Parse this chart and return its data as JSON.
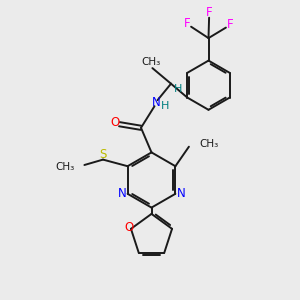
{
  "background_color": "#EBEBEB",
  "bond_color": "#1a1a1a",
  "N_color": "#0000FF",
  "O_color": "#FF0000",
  "S_color": "#BBBB00",
  "F_color": "#FF00FF",
  "NH_color": "#008080",
  "figsize": [
    3.0,
    3.0
  ],
  "dpi": 100,
  "xlim": [
    0,
    10
  ],
  "ylim": [
    0,
    10
  ]
}
